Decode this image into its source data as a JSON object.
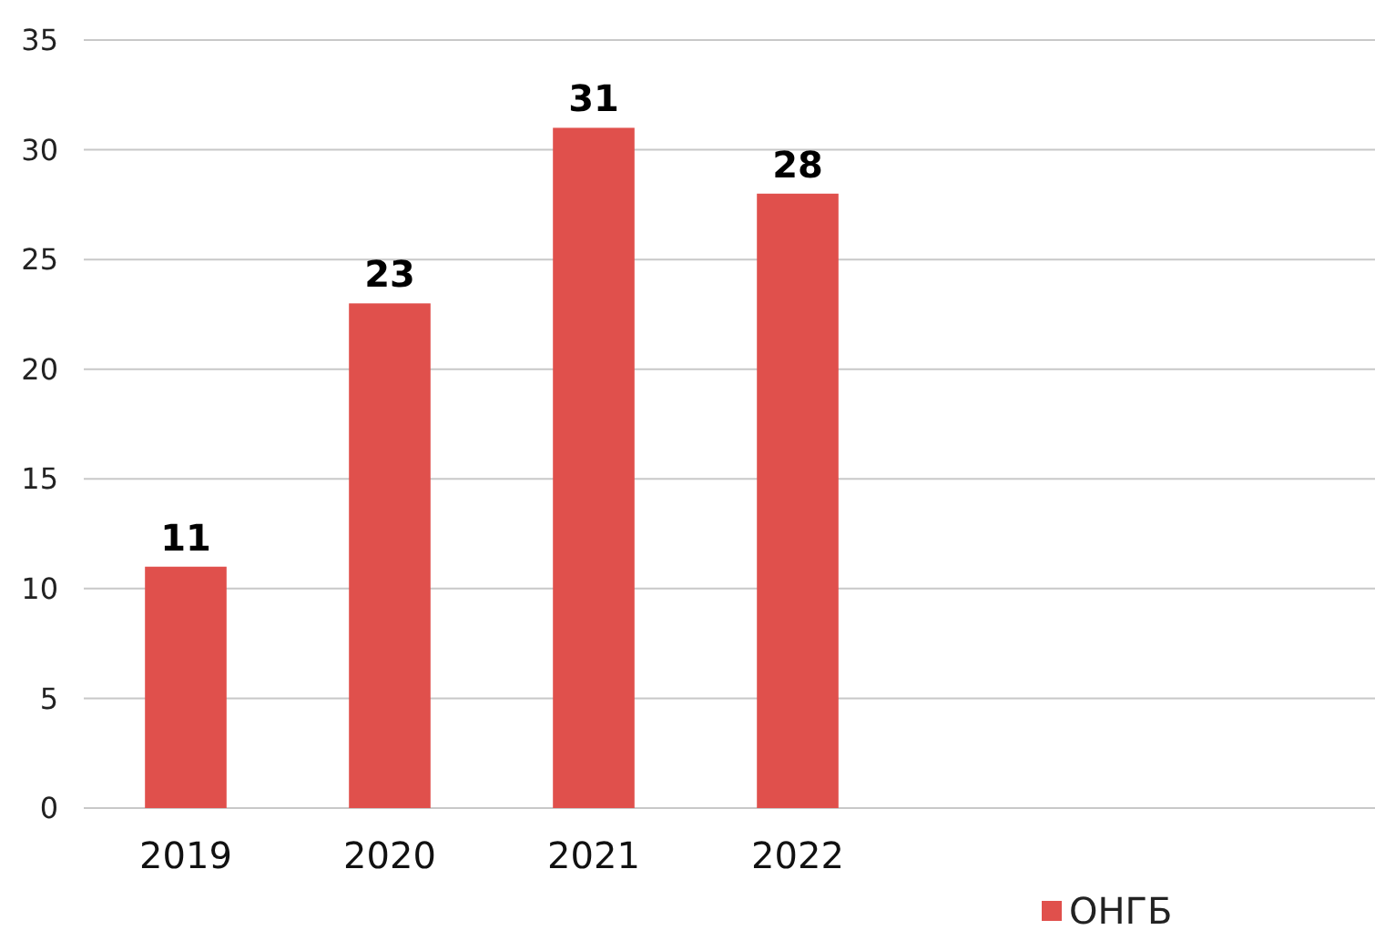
{
  "chart_data": {
    "type": "bar",
    "categories": [
      "2019",
      "2020",
      "2021",
      "2022",
      null,
      null
    ],
    "series": [
      {
        "name": "ОНГБ",
        "color": "#e0504c",
        "values": [
          11,
          23,
          31,
          28,
          null,
          null
        ]
      }
    ],
    "ylim": [
      0,
      35
    ],
    "yticks": [
      0,
      5,
      10,
      15,
      20,
      25,
      30,
      35
    ],
    "grid": "y",
    "legend": "bottom right",
    "data_labels": true
  }
}
